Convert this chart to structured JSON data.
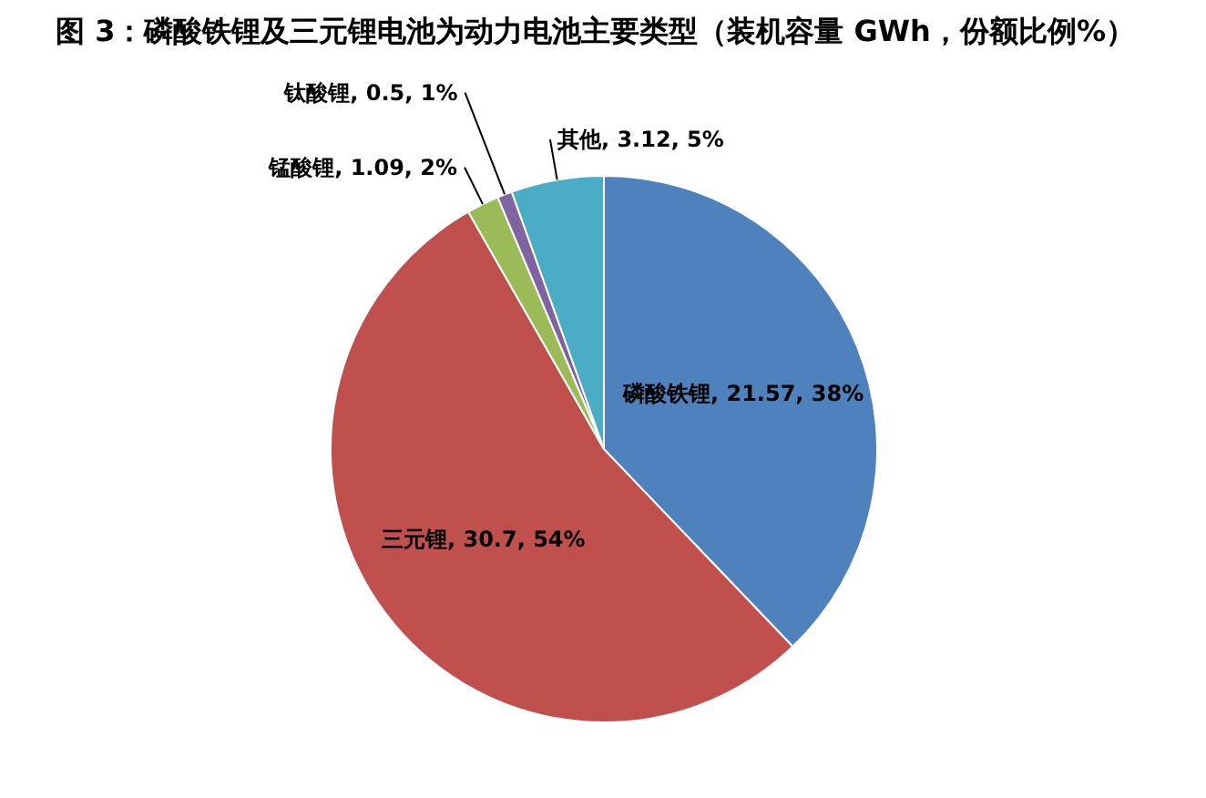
{
  "chart_data": {
    "type": "pie",
    "title": "图 3：磷酸铁锂及三元锂电池为动力电池主要类型（装机容量 GWh，份额比例%）",
    "categories": [
      "磷酸铁锂",
      "三元锂",
      "锰酸锂",
      "钛酸锂",
      "其他"
    ],
    "values": [
      21.57,
      30.7,
      1.09,
      0.5,
      3.12
    ],
    "colors": [
      "#4f81bd",
      "#c0504d",
      "#9bbb59",
      "#8064a2",
      "#4bacc6"
    ],
    "value_labels": [
      "21.57, 38%",
      "30.7, 54%",
      "1.09, 2%",
      "0.5, 1%",
      "3.12, 5%"
    ]
  }
}
